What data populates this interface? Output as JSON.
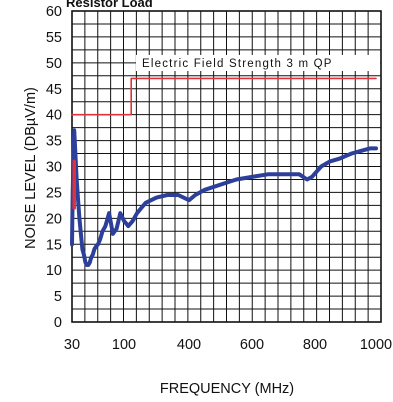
{
  "chart_data": {
    "type": "line",
    "title": "Resistor Load",
    "xlabel": "FREQUENCY (MHz)",
    "ylabel": "NOISE LEVEL (DBµV/m)",
    "ylim": [
      0,
      60
    ],
    "yticks": [
      "0",
      "5",
      "10",
      "15",
      "20",
      "25",
      "30",
      "35",
      "40",
      "45",
      "50",
      "55",
      "60"
    ],
    "xticks": [
      "30",
      "100",
      "400",
      "600",
      "800",
      "1000"
    ],
    "grid": true,
    "annotation": "Electric Field Strength 3 m QP",
    "colors": {
      "limit": "#e0323a",
      "noise": "#2b3f9b",
      "peak": "#e0323a",
      "grid": "#111111"
    },
    "series": [
      {
        "name": "Electric Field Strength 3 m QP",
        "color": "#e0323a",
        "x": [
          30,
          133,
          133,
          1000
        ],
        "y": [
          40,
          40,
          47,
          47
        ]
      },
      {
        "color": "#2b3f9b",
        "x": [
          30,
          31,
          32,
          33,
          34,
          36,
          38,
          40,
          42,
          44,
          46,
          48,
          50,
          52,
          54,
          56,
          58,
          60,
          62,
          65,
          68,
          71,
          75,
          80,
          85,
          90,
          95,
          100,
          110,
          120,
          140,
          160,
          180,
          200,
          250,
          300,
          350,
          400,
          420,
          450,
          500,
          550,
          600,
          650,
          700,
          750,
          775,
          790,
          820,
          850,
          880,
          920,
          950,
          980,
          1000
        ],
        "y": [
          15,
          25,
          32,
          37,
          34,
          28,
          24,
          20,
          17,
          14,
          13,
          11.5,
          11,
          11,
          11.5,
          12.5,
          13,
          14,
          14.5,
          15,
          16,
          17.5,
          18.5,
          21,
          17,
          18,
          21,
          19.5,
          19,
          18.5,
          19.5,
          21,
          22,
          23,
          24,
          24.5,
          24.5,
          23.5,
          24.5,
          25.5,
          26.5,
          27.5,
          28,
          28.5,
          28.5,
          28.5,
          27.5,
          28,
          30,
          31,
          31.5,
          32.5,
          33,
          33.5,
          33.5
        ]
      }
    ],
    "peak_marks": [
      {
        "x": 33,
        "y1": 22,
        "y2": 31
      }
    ]
  }
}
